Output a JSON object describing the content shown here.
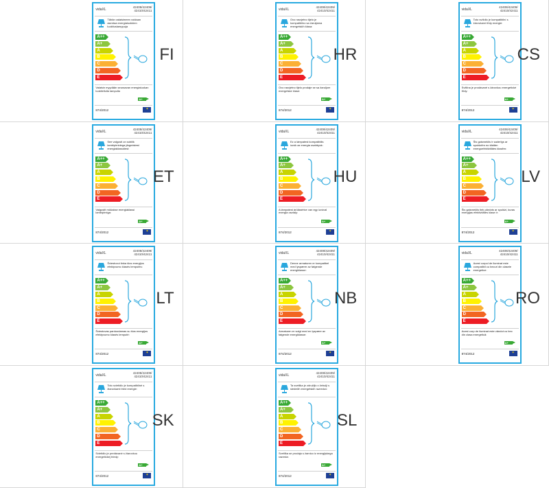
{
  "cells": [
    {
      "lang": "FI",
      "brand": "vidaXL",
      "models": [
        "42408/42409/",
        "42410/42411"
      ],
      "desc": "Tähän valaisimeen voidaan asentaa energialuokkien luokituslamppuja",
      "note": "Valaisin myydään seuraavan energialuokan luokitellulla lampulla",
      "rating": "A+",
      "reg": "874/2012"
    },
    {
      "lang": "HR",
      "brand": "vidaXL",
      "models": [
        "42408/42409/",
        "42410/42411"
      ],
      "desc": "Ovo rasvjetno tijelo je kompatibilno sa žaruljama energetskih klasa:",
      "note": "Ovo rasvjetno tijelo prodaje se sa žaruljom energetske klase:",
      "rating": "A+",
      "reg": "874/2012"
    },
    {
      "lang": "CS",
      "brand": "vidaXL",
      "models": [
        "42408/42409/",
        "42410/42411"
      ],
      "desc": "Toto svítidlo je kompatibilní s žárovkami třídy energie:",
      "note": "Svítilna je prodávané s žárovkou energetické třídy:",
      "rating": "A+",
      "reg": "874/2012"
    },
    {
      "lang": "ET",
      "brand": "vidaXL",
      "models": [
        "42408/42409/",
        "42410/42411"
      ],
      "desc": "See valgusti on sobilik lambipirnidega järgmistest energiaklassidest:",
      "note": "Valgustit müüakse energiaklassi lambipirniga:",
      "rating": "A+",
      "reg": "874/2012"
    },
    {
      "lang": "HU",
      "brand": "vidaXL",
      "models": [
        "42408/42409/",
        "42410/42411"
      ],
      "desc": "Ez a lámpatest kompatibilis izzók az energia osztályok:",
      "note": "A lámpatest árülásértve van egy izzóval energia osztály:",
      "rating": "A+",
      "reg": "874/2012"
    },
    {
      "lang": "LV",
      "brand": "vidaXL",
      "models": [
        "42408/42409/",
        "42410/42411"
      ],
      "desc": "Šis gaismeklis ir saderīgs ar spuldzēm no šādām energoefektivitātes klasēm:",
      "note": "Šis gaismeklis tiek pārdots ar spuldzi, kuras energijas efektivitātes klase ir:",
      "rating": "A+",
      "reg": "874/2012"
    },
    {
      "lang": "LT",
      "brand": "vidaXL",
      "models": [
        "42408/42409/",
        "42410/42411"
      ],
      "desc": "Šviestuvui tinka šios energijos efektyvumo klasės lemputės:",
      "note": "Šviestuvas parduodamas su šios energijos efektyvumo klasės lemputė:",
      "rating": "A+",
      "reg": "874/2012"
    },
    {
      "lang": "NB",
      "brand": "vidaXL",
      "models": [
        "42408/42409/",
        "42410/42411"
      ],
      "desc": "Denne armaturen er kompatibel med lyspærer av følgende energiklasse:",
      "note": "Armaturen er solgt med en lyspære av følgende energiklasse:",
      "rating": "A+",
      "reg": "874/2012"
    },
    {
      "lang": "RO",
      "brand": "vidaXL",
      "models": [
        "42408/42409/",
        "42410/42411"
      ],
      "desc": "Acest corpul de iluminat este compatibil cu becuri din clasele energetice:",
      "note": "Acest corp de iluminat este vândut cu bec din clasa energetică:",
      "rating": "A+",
      "reg": "874/2012"
    },
    {
      "lang": "SK",
      "brand": "vidaXL",
      "models": [
        "42408/42409/",
        "42410/42411"
      ],
      "desc": "Toto svietidlo je kompatibilné s žiarovkami tried energie:",
      "note": "Svietidlo je predávané s žiarovkou energetickej triedy:",
      "rating": "A+",
      "reg": "874/2012"
    },
    {
      "lang": "SL",
      "brand": "vidaXL",
      "models": [
        "42408/42409/",
        "42410/42411"
      ],
      "desc": "Ta svetilka je združljiv z žebulji s sledečih energetskih razredov:",
      "note": "Svetilka se prodaja s žarnico iz energijskega razreda:",
      "rating": "A+",
      "reg": "874/2012"
    }
  ],
  "energy_classes": [
    "A++",
    "A+",
    "A",
    "B",
    "C",
    "D",
    "E"
  ],
  "class_colors": [
    "#39a935",
    "#8dc63f",
    "#c8d400",
    "#fff200",
    "#fbb034",
    "#f26522",
    "#ed1c24"
  ]
}
